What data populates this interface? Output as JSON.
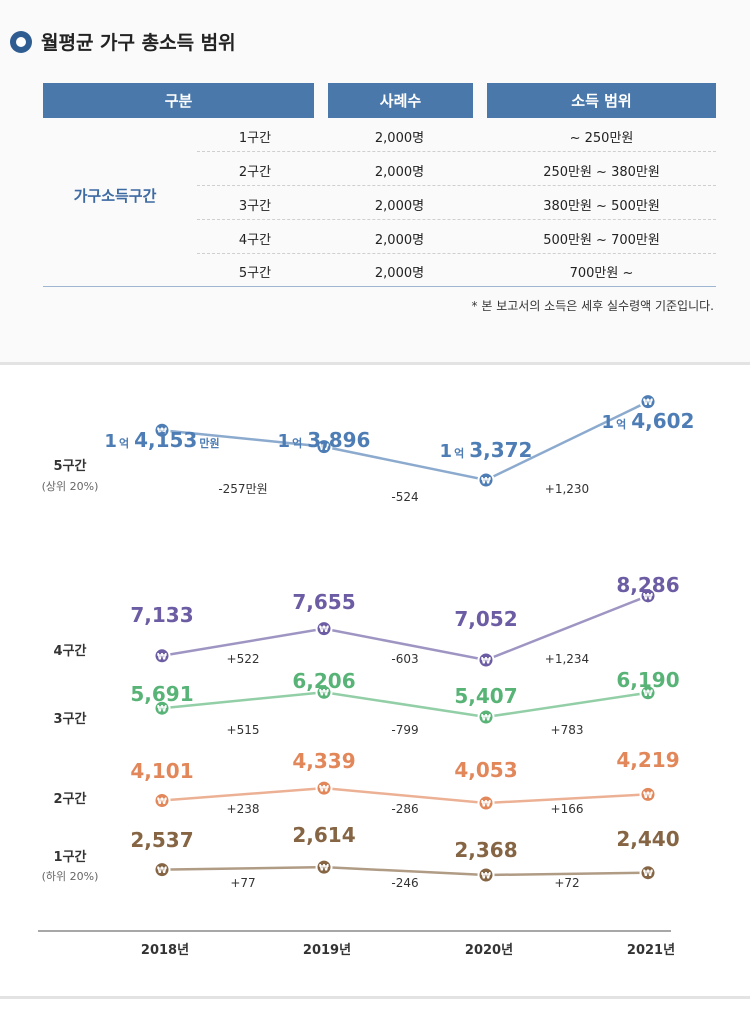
{
  "header": {
    "title": "월평균 가구 총소득 범위"
  },
  "table": {
    "headers": [
      "구분",
      "사례수",
      "소득 범위"
    ],
    "category": "가구소득구간",
    "rows": [
      {
        "label": "1구간",
        "count": "2,000명",
        "range": "~ 250만원"
      },
      {
        "label": "2구간",
        "count": "2,000명",
        "range": "250만원 ~ 380만원"
      },
      {
        "label": "3구간",
        "count": "2,000명",
        "range": "380만원 ~ 500만원"
      },
      {
        "label": "4구간",
        "count": "2,000명",
        "range": "500만원 ~ 700만원"
      },
      {
        "label": "5구간",
        "count": "2,000명",
        "range": "700만원 ~"
      }
    ],
    "note": "* 본 보고서의 소득은 세후 실수령액 기준입니다."
  },
  "chart_data": {
    "type": "line",
    "categories": [
      "2018년",
      "2019년",
      "2020년",
      "2021년"
    ],
    "unit_hint": "만원",
    "marker_glyph": "₩",
    "series": [
      {
        "name": "5구간",
        "sub": "(상위 20%)",
        "color": "#4d7db4",
        "values": [
          14153,
          13896,
          13372,
          14602
        ],
        "labels": [
          {
            "a": "1",
            "b": "억",
            "c": "4,153",
            "d": "만원"
          },
          {
            "a": "1",
            "b": "억",
            "c": "3,896",
            "d": ""
          },
          {
            "a": "1",
            "b": "억",
            "c": "3,372",
            "d": ""
          },
          {
            "a": "1",
            "b": "억",
            "c": "4,602",
            "d": ""
          }
        ],
        "changes": [
          "-257만원",
          "-524",
          "+1,230"
        ]
      },
      {
        "name": "4구간",
        "sub": "",
        "color": "#6c5ca3",
        "values": [
          7133,
          7655,
          7052,
          8286
        ],
        "labels": [
          "7,133",
          "7,655",
          "7,052",
          "8,286"
        ],
        "changes": [
          "+522",
          "-603",
          "+1,234"
        ]
      },
      {
        "name": "3구간",
        "sub": "",
        "color": "#58b377",
        "values": [
          5691,
          6206,
          5407,
          6190
        ],
        "labels": [
          "5,691",
          "6,206",
          "5,407",
          "6,190"
        ],
        "changes": [
          "+515",
          "-799",
          "+783"
        ]
      },
      {
        "name": "2구간",
        "sub": "",
        "color": "#e2875a",
        "values": [
          4101,
          4339,
          4053,
          4219
        ],
        "labels": [
          "4,101",
          "4,339",
          "4,053",
          "4,219"
        ],
        "changes": [
          "+238",
          "-286",
          "+166"
        ]
      },
      {
        "name": "1구간",
        "sub": "(하위 20%)",
        "color": "#856544",
        "values": [
          2537,
          2614,
          2368,
          2440
        ],
        "labels": [
          "2,537",
          "2,614",
          "2,368",
          "2,440"
        ],
        "changes": [
          "+77",
          "-246",
          "+72"
        ]
      }
    ]
  }
}
